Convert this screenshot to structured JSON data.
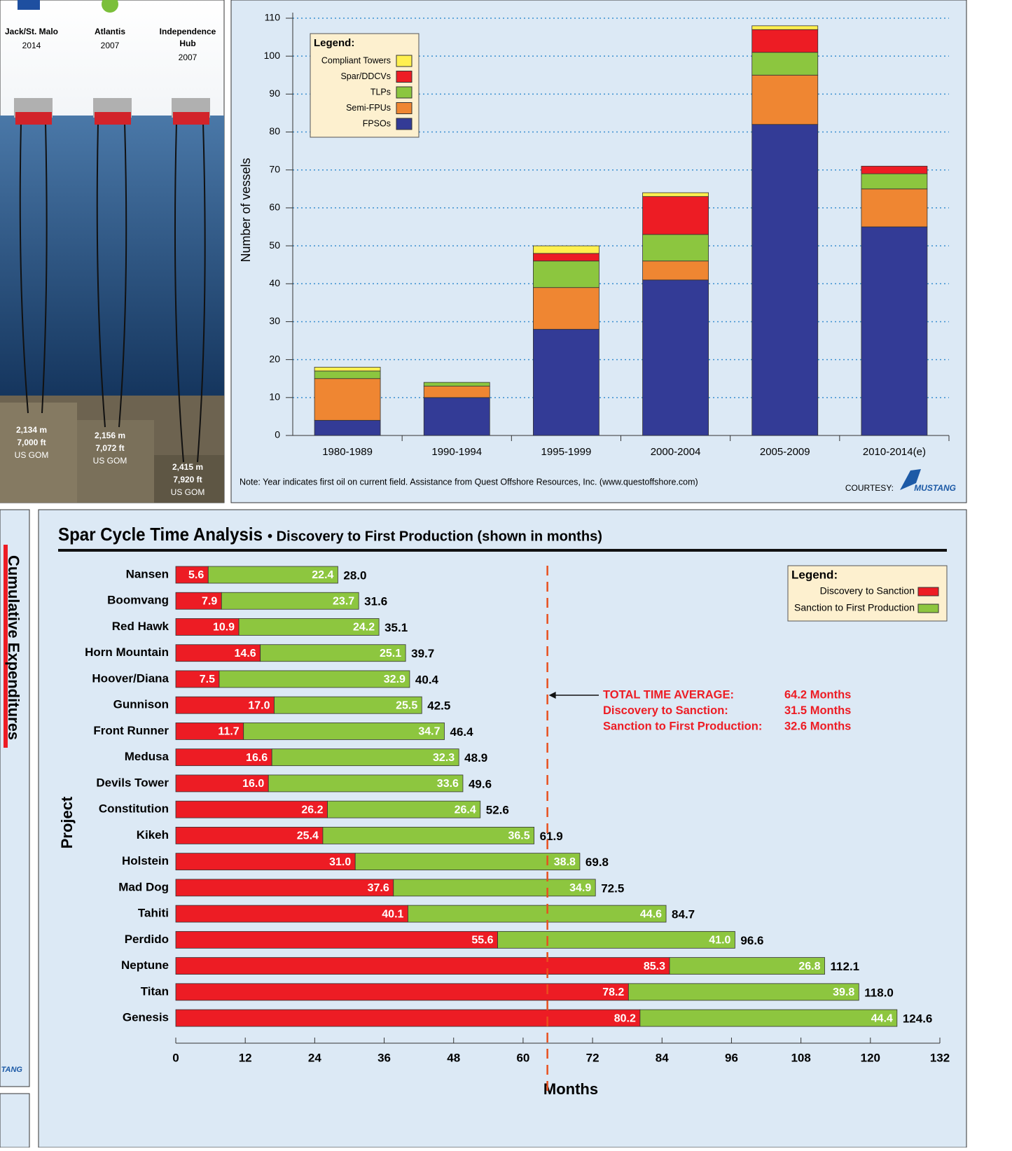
{
  "illustration": {
    "platforms": [
      {
        "name": [
          "Jack/St. Malo"
        ],
        "year": "2014",
        "depth": [
          "2,134 m",
          "7,000 ft",
          "US GOM"
        ]
      },
      {
        "name": [
          "Atlantis"
        ],
        "year": "2007",
        "depth": [
          "2,156 m",
          "7,072 ft",
          "US GOM"
        ]
      },
      {
        "name": [
          "Independence",
          "Hub"
        ],
        "year": "2007",
        "depth": [
          "2,415 m",
          "7,920 ft",
          "US GOM"
        ]
      }
    ]
  },
  "sidebar": {
    "title": "Cumulative Expenditures",
    "logo": "TANG"
  },
  "chart_data": [
    {
      "type": "stacked_bar",
      "ylabel": "Number of vessels",
      "categories": [
        "1980-1989",
        "1990-1994",
        "1995-1999",
        "2000-2004",
        "2005-2009",
        "2010-2014(e)"
      ],
      "series": [
        {
          "name": "FPSOs",
          "color": "#333b96",
          "values": [
            4,
            10,
            28,
            41,
            82,
            55
          ]
        },
        {
          "name": "Semi-FPUs",
          "color": "#ef8632",
          "values": [
            11,
            3,
            11,
            5,
            13,
            10
          ]
        },
        {
          "name": "TLPs",
          "color": "#8cc63f",
          "values": [
            2,
            1,
            7,
            7,
            6,
            4
          ]
        },
        {
          "name": "Spar/DDCVs",
          "color": "#ed1c24",
          "values": [
            0,
            0,
            2,
            10,
            6,
            2
          ]
        },
        {
          "name": "Compliant Towers",
          "color": "#fff04f",
          "values": [
            1,
            0,
            2,
            1,
            1,
            0
          ]
        }
      ],
      "ylim": [
        0,
        110
      ],
      "yticks": [
        0,
        10,
        20,
        30,
        40,
        50,
        60,
        70,
        80,
        90,
        100,
        110
      ],
      "grid": true,
      "legend": {
        "title": "Legend:",
        "position": "upper left"
      },
      "note": "Note: Year indicates first oil on current field.    Assistance from Quest Offshore Resources, Inc. (www.questoffshore.com)",
      "courtesy": "COURTESY:",
      "logo": "MUSTANG"
    },
    {
      "type": "horizontal_stacked_bar",
      "title": "Spar Cycle Time Analysis",
      "subtitle": "• Discovery to First Production (shown in months)",
      "xlabel": "Months",
      "ylabel": "Project",
      "categories": [
        "Nansen",
        "Boomvang",
        "Red Hawk",
        "Horn Mountain",
        "Hoover/Diana",
        "Gunnison",
        "Front Runner",
        "Medusa",
        "Devils Tower",
        "Constitution",
        "Kikeh",
        "Holstein",
        "Mad Dog",
        "Tahiti",
        "Perdido",
        "Neptune",
        "Titan",
        "Genesis"
      ],
      "series": [
        {
          "name": "Discovery to Sanction",
          "color": "#ed1c24",
          "values": [
            5.6,
            7.9,
            10.9,
            14.6,
            7.5,
            17,
            11.7,
            16.6,
            16,
            26.2,
            25.4,
            31,
            37.6,
            40.1,
            55.6,
            85.3,
            78.2,
            80.2
          ],
          "value_labels": [
            "5.6",
            "7.9",
            "10.9",
            "14.6",
            "7.5",
            "17.0",
            "11.7",
            "16.6",
            "16.0",
            "26.2",
            "25.4",
            "31.0",
            "37.6",
            "40.1",
            "55.6",
            "85.3",
            "78.2",
            "80.2"
          ]
        },
        {
          "name": "Sanction to First Production",
          "color": "#8dc63f",
          "values": [
            22.4,
            23.7,
            24.2,
            25.1,
            32.9,
            25.5,
            34.7,
            32.3,
            33.6,
            26.4,
            36.5,
            38.8,
            34.9,
            44.6,
            41,
            26.8,
            39.8,
            44.4
          ],
          "value_labels": [
            "22.4",
            "23.7",
            "24.2",
            "25.1",
            "32.9",
            "25.5",
            "34.7",
            "32.3",
            "33.6",
            "26.4",
            "36.5",
            "38.8",
            "34.9",
            "44.6",
            "41.0",
            "26.8",
            "39.8",
            "44.4"
          ]
        }
      ],
      "total_labels": [
        "28.0",
        "31.6",
        "35.1",
        "39.7",
        "40.4",
        "42.5",
        "46.4",
        "48.9",
        "49.6",
        "52.6",
        "61.9",
        "69.8",
        "72.5",
        "84.7",
        "96.6",
        "112.1",
        "118.0",
        "124.6"
      ],
      "xlim": [
        0,
        132
      ],
      "xticks": [
        0,
        12,
        24,
        36,
        48,
        60,
        72,
        84,
        96,
        108,
        120,
        132
      ],
      "reference_line": 64.2,
      "annotations": [
        [
          "TOTAL TIME AVERAGE:",
          "64.2 Months"
        ],
        [
          "Discovery to Sanction:",
          "31.5 Months"
        ],
        [
          "Sanction to First Production:",
          "32.6 Months"
        ]
      ],
      "legend": {
        "title": "Legend:",
        "position": "upper right"
      }
    }
  ]
}
